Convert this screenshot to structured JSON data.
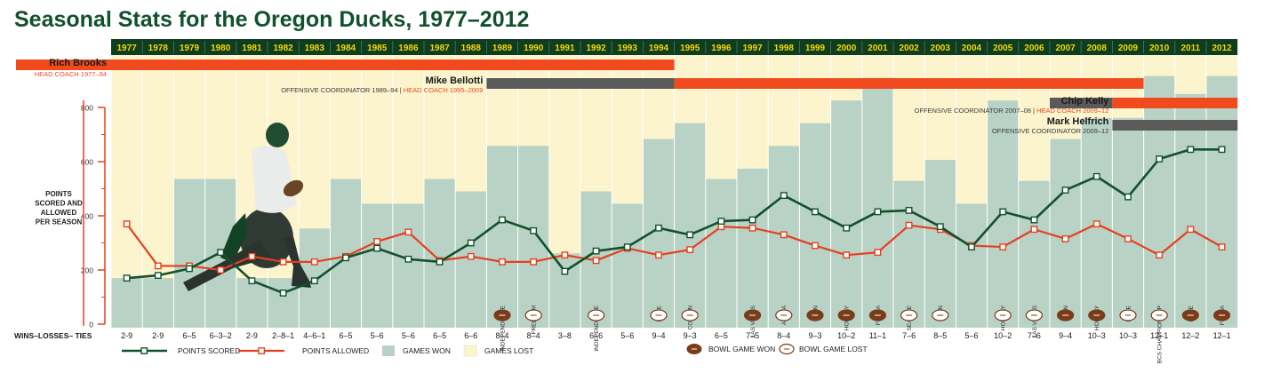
{
  "colors": {
    "title": "#12512d",
    "year_bar": "#0f3d1f",
    "year_text": "#f5d800",
    "won": "#b9d2c6",
    "lost": "#fbf4cd",
    "scored": "#12512d",
    "allowed": "#e4401f",
    "coach_bar": "#f04a1e",
    "coord_bar": "#5a5a5a",
    "axis_red": "#e4401f",
    "bowl_won": "#7a3c18"
  },
  "chart_data": {
    "type": "line",
    "title": "Seasonal Stats for the Oregon Ducks, 1977–2012",
    "ylabel": "POINTS SCORED AND ALLOWED PER SEASON",
    "ylim": [
      0,
      800
    ],
    "yticks": [
      0,
      200,
      400,
      600,
      800
    ],
    "records_label": "WINS–LOSSES– TIES",
    "years": [
      "1977",
      "1978",
      "1979",
      "1980",
      "1981",
      "1982",
      "1983",
      "1984",
      "1985",
      "1986",
      "1987",
      "1988",
      "1989",
      "1990",
      "1991",
      "1992",
      "1993",
      "1994",
      "1995",
      "1996",
      "1997",
      "1998",
      "1999",
      "2000",
      "2001",
      "2002",
      "2003",
      "2004",
      "2005",
      "2006",
      "2007",
      "2008",
      "2009",
      "2010",
      "2011",
      "2012"
    ],
    "records": [
      "2-9",
      "2-9",
      "6–5",
      "6–3–2",
      "2-9",
      "2–8–1",
      "4–6–1",
      "6–5",
      "5–6",
      "5–6",
      "6–5",
      "6–6",
      "8–4",
      "8–4",
      "3–8",
      "6–6",
      "5–6",
      "9–4",
      "9–3",
      "6–5",
      "7–5",
      "8–4",
      "9–3",
      "10–2",
      "11–1",
      "7–6",
      "8–5",
      "5–6",
      "10–2",
      "7–6",
      "9–4",
      "10–3",
      "10–3",
      "12–1",
      "12–2",
      "12–1"
    ],
    "games_won": [
      2,
      2,
      6,
      6,
      2,
      2,
      4,
      6,
      5,
      5,
      6,
      6,
      8,
      8,
      3,
      6,
      5,
      9,
      9,
      6,
      7,
      8,
      9,
      10,
      11,
      7,
      8,
      5,
      10,
      7,
      9,
      10,
      10,
      12,
      12,
      12
    ],
    "games_total": [
      11,
      11,
      11,
      11,
      11,
      11,
      11,
      11,
      11,
      11,
      11,
      12,
      12,
      12,
      11,
      12,
      11,
      13,
      12,
      11,
      12,
      12,
      12,
      12,
      12,
      13,
      13,
      11,
      12,
      13,
      13,
      13,
      13,
      13,
      14,
      13
    ],
    "series": [
      {
        "name": "POINTS SCORED",
        "values": [
          170,
          180,
          205,
          265,
          160,
          115,
          160,
          245,
          280,
          240,
          230,
          300,
          385,
          345,
          195,
          270,
          285,
          355,
          330,
          380,
          385,
          475,
          415,
          355,
          415,
          420,
          360,
          285,
          415,
          385,
          495,
          545,
          470,
          610,
          645,
          645
        ]
      },
      {
        "name": "POINTS ALLOWED",
        "values": [
          370,
          215,
          215,
          200,
          250,
          230,
          230,
          250,
          305,
          340,
          235,
          250,
          230,
          230,
          255,
          235,
          280,
          255,
          275,
          360,
          355,
          330,
          290,
          255,
          265,
          365,
          350,
          290,
          285,
          350,
          315,
          370,
          315,
          255,
          350,
          285
        ]
      }
    ],
    "games_won_label": "GAMES WON",
    "games_lost_label": "GAMES LOST",
    "bowls": [
      {
        "year": "1989",
        "name": "INDEPENDENCE",
        "result": "won"
      },
      {
        "year": "1990",
        "name": "FREEDOM",
        "result": "lost"
      },
      {
        "year": "1992",
        "name": "INDEPENDENCE",
        "result": "lost"
      },
      {
        "year": "1994",
        "name": "ROSE",
        "result": "lost"
      },
      {
        "year": "1995",
        "name": "COTTON",
        "result": "lost"
      },
      {
        "year": "1997",
        "name": "LAS VEGAS",
        "result": "won"
      },
      {
        "year": "1998",
        "name": "ALOHA",
        "result": "lost"
      },
      {
        "year": "1999",
        "name": "SUN",
        "result": "won"
      },
      {
        "year": "2000",
        "name": "HOLIDAY",
        "result": "won"
      },
      {
        "year": "2001",
        "name": "FIESTA",
        "result": "won"
      },
      {
        "year": "2002",
        "name": "SEATTLE",
        "result": "lost"
      },
      {
        "year": "2003",
        "name": "SUN",
        "result": "lost"
      },
      {
        "year": "2005",
        "name": "HOLIDAY",
        "result": "lost"
      },
      {
        "year": "2006",
        "name": "LAS VEGAS",
        "result": "lost"
      },
      {
        "year": "2007",
        "name": "SUN",
        "result": "won"
      },
      {
        "year": "2008",
        "name": "HOLIDAY",
        "result": "won"
      },
      {
        "year": "2009",
        "name": "ROSE",
        "result": "lost"
      },
      {
        "year": "2010",
        "name": "BCS CHAMPIONSHIP",
        "result": "lost"
      },
      {
        "year": "2011",
        "name": "ROSE",
        "result": "won"
      },
      {
        "year": "2012",
        "name": "FIESTA",
        "result": "won"
      }
    ],
    "legend": {
      "scored": "POINTS SCORED",
      "allowed": "POINTS ALLOWED",
      "won": "GAMES WON",
      "lost": "GAMES LOST",
      "bowl_won": "BOWL GAME WON",
      "bowl_lost": "BOWL GAME LOST"
    },
    "coaches": [
      {
        "name": "Rich Brooks",
        "label_right": "",
        "head_label": "HEAD COACH 1977–94",
        "coord_label": "",
        "coord_from": "",
        "coord_to": "",
        "head_from": "1977",
        "head_to": "1994"
      },
      {
        "name": "Mike Bellotti",
        "coord_label": "OFFENSIVE COORDINATOR 1989–94",
        "head_label": "HEAD COACH 1995–2009",
        "coord_from": "1989",
        "coord_to": "1994",
        "head_from": "1995",
        "head_to": "2009"
      },
      {
        "name": "Chip Kelly",
        "coord_label": "OFFENSIVE COORDINATOR 2007–08",
        "head_label": "HEAD COACH 2009–12",
        "coord_from": "2007",
        "coord_to": "2008",
        "head_from": "2009",
        "head_to": "2012"
      },
      {
        "name": "Mark Helfrich",
        "coord_label": "OFFENSIVE COORDINATOR 2009–12",
        "head_label": "",
        "coord_from": "2009",
        "coord_to": "2012",
        "head_from": "",
        "head_to": ""
      }
    ]
  }
}
